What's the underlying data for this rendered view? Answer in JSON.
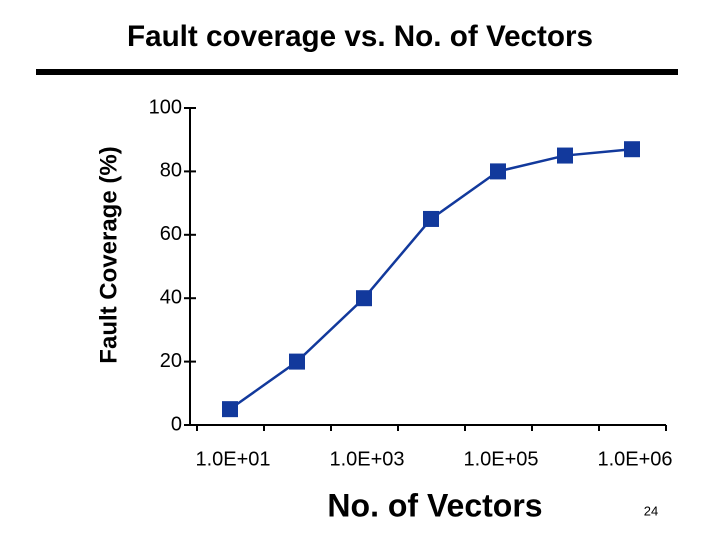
{
  "chart_data": {
    "type": "line",
    "title": "Fault coverage vs. No. of Vectors",
    "x_label": "No. of Vectors",
    "y_label": "Fault Coverage (%)",
    "categories": [
      "1.0E+01",
      null,
      "1.0E+03",
      null,
      "1.0E+05",
      null,
      "1.0E+06"
    ],
    "values": [
      5,
      20,
      40,
      65,
      80,
      85,
      87
    ],
    "color": "#12399c",
    "ylim": [
      0,
      100
    ],
    "yticks": [
      0,
      20,
      40,
      60,
      80,
      100
    ],
    "grid": false
  },
  "page_number": "24"
}
